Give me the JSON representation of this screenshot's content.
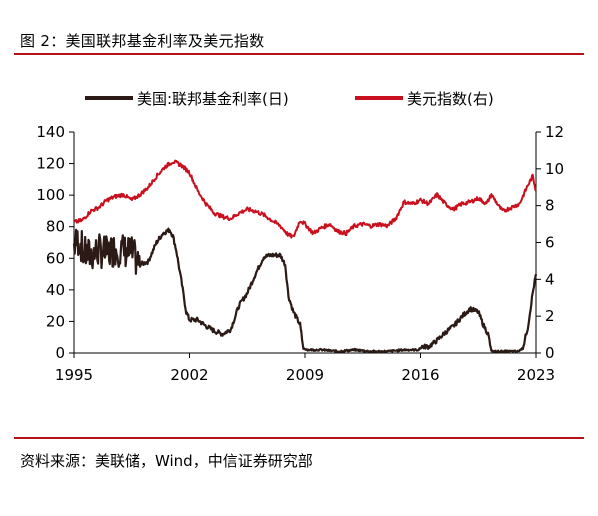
{
  "figure": {
    "title": "图 2：美国联邦基金利率及美元指数",
    "source": "资料来源：美联储，Wind，中信证券研究部",
    "colors": {
      "accent_red": "#c8101e",
      "series_dark": "#2b1a16",
      "rule": "#b5121b"
    }
  },
  "chart_data": {
    "type": "line",
    "title": "",
    "xlabel": "",
    "ylabel": "",
    "xlim": [
      1995,
      2023
    ],
    "x_ticks": [
      "1995",
      "2002",
      "2009",
      "2016",
      "2023"
    ],
    "y_left": {
      "ylim": [
        0,
        140
      ],
      "ticks": [
        "0",
        "20",
        "40",
        "60",
        "80",
        "100",
        "120",
        "140"
      ]
    },
    "y_right": {
      "ylim": [
        0,
        12
      ],
      "ticks": [
        "0",
        "2",
        "4",
        "6",
        "8",
        "10",
        "12"
      ]
    },
    "grid": false,
    "legend": "top",
    "series": [
      {
        "name": "美国:联邦基金利率(日)",
        "axis": "left",
        "color": "#2b1a16",
        "points": [
          [
            1995.0,
            68
          ],
          [
            1995.3,
            72
          ],
          [
            1995.6,
            63
          ],
          [
            1996.0,
            62
          ],
          [
            1996.5,
            65
          ],
          [
            1997.0,
            63
          ],
          [
            1997.5,
            66
          ],
          [
            1998.0,
            65
          ],
          [
            1998.5,
            63
          ],
          [
            1999.0,
            56
          ],
          [
            1999.5,
            58
          ],
          [
            2000.0,
            70
          ],
          [
            2000.4,
            76
          ],
          [
            2000.8,
            78
          ],
          [
            2001.0,
            74
          ],
          [
            2001.2,
            65
          ],
          [
            2001.5,
            46
          ],
          [
            2001.8,
            26
          ],
          [
            2002.0,
            21
          ],
          [
            2002.5,
            21
          ],
          [
            2003.0,
            17
          ],
          [
            2003.5,
            14
          ],
          [
            2004.0,
            12
          ],
          [
            2004.5,
            15
          ],
          [
            2005.0,
            30
          ],
          [
            2005.5,
            38
          ],
          [
            2006.0,
            50
          ],
          [
            2006.5,
            61
          ],
          [
            2007.0,
            62
          ],
          [
            2007.5,
            62
          ],
          [
            2007.8,
            56
          ],
          [
            2008.0,
            36
          ],
          [
            2008.3,
            26
          ],
          [
            2008.7,
            18
          ],
          [
            2008.9,
            3
          ],
          [
            2009.2,
            2
          ],
          [
            2010,
            2
          ],
          [
            2011,
            1
          ],
          [
            2012,
            2
          ],
          [
            2013,
            1
          ],
          [
            2014,
            1
          ],
          [
            2015,
            2
          ],
          [
            2015.9,
            2
          ],
          [
            2016.1,
            4
          ],
          [
            2016.5,
            4
          ],
          [
            2017.0,
            8
          ],
          [
            2017.5,
            13
          ],
          [
            2018.0,
            17
          ],
          [
            2018.5,
            23
          ],
          [
            2019.0,
            28
          ],
          [
            2019.5,
            26
          ],
          [
            2019.8,
            18
          ],
          [
            2020.1,
            12
          ],
          [
            2020.3,
            1
          ],
          [
            2021,
            1
          ],
          [
            2021.9,
            1
          ],
          [
            2022.2,
            3
          ],
          [
            2022.5,
            16
          ],
          [
            2022.8,
            38
          ],
          [
            2023.0,
            50
          ]
        ]
      },
      {
        "name": "美元指数(右)",
        "axis": "right",
        "color": "#c8101e",
        "points": [
          [
            1995.0,
            7.1
          ],
          [
            1995.5,
            7.2
          ],
          [
            1996.0,
            7.7
          ],
          [
            1996.5,
            7.9
          ],
          [
            1997.0,
            8.3
          ],
          [
            1997.5,
            8.5
          ],
          [
            1998.0,
            8.6
          ],
          [
            1998.5,
            8.3
          ],
          [
            1999.0,
            8.6
          ],
          [
            1999.5,
            9.0
          ],
          [
            2000.0,
            9.6
          ],
          [
            2000.5,
            10.1
          ],
          [
            2001.0,
            10.4
          ],
          [
            2001.5,
            10.2
          ],
          [
            2002.0,
            9.8
          ],
          [
            2002.5,
            8.8
          ],
          [
            2003.0,
            8.1
          ],
          [
            2003.5,
            7.6
          ],
          [
            2004.0,
            7.4
          ],
          [
            2004.5,
            7.3
          ],
          [
            2005.0,
            7.6
          ],
          [
            2005.5,
            7.8
          ],
          [
            2006.0,
            7.7
          ],
          [
            2006.5,
            7.5
          ],
          [
            2007.0,
            7.2
          ],
          [
            2007.5,
            6.9
          ],
          [
            2008.0,
            6.4
          ],
          [
            2008.3,
            6.3
          ],
          [
            2008.7,
            7.2
          ],
          [
            2009.0,
            7.0
          ],
          [
            2009.5,
            6.5
          ],
          [
            2010.0,
            6.8
          ],
          [
            2010.5,
            7.0
          ],
          [
            2011.0,
            6.6
          ],
          [
            2011.5,
            6.5
          ],
          [
            2012.0,
            6.9
          ],
          [
            2012.5,
            7.0
          ],
          [
            2013.0,
            6.9
          ],
          [
            2013.5,
            7.0
          ],
          [
            2014.0,
            6.9
          ],
          [
            2014.5,
            7.3
          ],
          [
            2015.0,
            8.2
          ],
          [
            2015.5,
            8.1
          ],
          [
            2016.0,
            8.3
          ],
          [
            2016.5,
            8.1
          ],
          [
            2017.0,
            8.6
          ],
          [
            2017.5,
            8.1
          ],
          [
            2018.0,
            7.8
          ],
          [
            2018.5,
            8.1
          ],
          [
            2019.0,
            8.2
          ],
          [
            2019.5,
            8.4
          ],
          [
            2020.0,
            8.1
          ],
          [
            2020.3,
            8.6
          ],
          [
            2020.8,
            7.9
          ],
          [
            2021.0,
            7.7
          ],
          [
            2021.5,
            7.9
          ],
          [
            2022.0,
            8.1
          ],
          [
            2022.5,
            9.1
          ],
          [
            2022.8,
            9.6
          ],
          [
            2023.0,
            8.8
          ]
        ]
      }
    ]
  }
}
